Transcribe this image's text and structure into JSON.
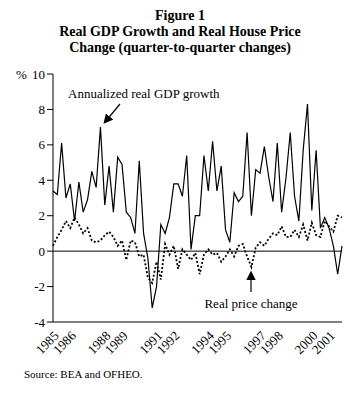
{
  "chart_data": {
    "type": "line",
    "title": "Figure 1",
    "subtitle": "Real GDP Growth and Real House Price Change (quarter-to-quarter changes)",
    "y_label": "%",
    "source": "Source: BEA and OFHEO.",
    "categories": [
      "1985",
      null,
      null,
      null,
      "1986",
      null,
      null,
      null,
      null,
      null,
      null,
      null,
      "1988",
      null,
      null,
      null,
      "1989",
      null,
      null,
      null,
      null,
      null,
      null,
      null,
      "1991",
      null,
      null,
      null,
      "1992",
      null,
      null,
      null,
      null,
      null,
      null,
      null,
      "1994",
      null,
      null,
      null,
      "1995",
      null,
      null,
      null,
      null,
      null,
      null,
      null,
      "1997",
      null,
      null,
      null,
      "1998",
      null,
      null,
      null,
      null,
      null,
      null,
      null,
      "2000",
      null,
      null,
      null,
      "2001",
      null,
      null,
      null
    ],
    "series": [
      {
        "name": "Annualized real GDP growth",
        "color": "#000000",
        "line_style": "solid",
        "values": [
          3.4,
          3.2,
          6.1,
          3.0,
          3.8,
          1.7,
          3.9,
          2.2,
          2.9,
          4.5,
          3.6,
          7.0,
          2.6,
          4.8,
          2.2,
          5.3,
          4.9,
          2.2,
          1.9,
          1.0,
          5.1,
          1.0,
          -0.4,
          -3.2,
          -2.0,
          1.5,
          1.0,
          1.9,
          3.8,
          3.8,
          3.1,
          5.4,
          0.1,
          2.0,
          2.0,
          5.4,
          3.4,
          6.2,
          3.4,
          4.8,
          1.2,
          0.5,
          3.3,
          2.8,
          3.1,
          6.7,
          2.0,
          4.6,
          4.4,
          5.9,
          4.2,
          2.8,
          6.1,
          2.2,
          4.1,
          6.7,
          3.1,
          1.7,
          5.7,
          8.3,
          2.3,
          5.7,
          1.3,
          1.9,
          1.3,
          0.3,
          -1.3,
          0.3
        ]
      },
      {
        "name": "Real price change",
        "color": "#000000",
        "line_style": "dotted",
        "values": [
          0.3,
          0.8,
          1.2,
          1.7,
          1.3,
          1.9,
          1.5,
          1.0,
          1.3,
          0.6,
          0.5,
          0.6,
          0.9,
          1.1,
          0.8,
          0.3,
          0.6,
          -0.5,
          0.6,
          0.5,
          -0.3,
          -0.2,
          -1.5,
          -1.8,
          -0.6,
          -1.6,
          0.4,
          -0.2,
          0.3,
          -1.0,
          0.1,
          -0.2,
          -0.5,
          -0.1,
          -1.3,
          -0.2,
          0.1,
          -0.2,
          -0.1,
          -0.6,
          -0.3,
          0.1,
          -0.3,
          0.3,
          0.4,
          -0.3,
          -0.9,
          0.2,
          0.5,
          0.3,
          0.7,
          1.0,
          0.9,
          1.4,
          0.8,
          0.8,
          1.2,
          0.8,
          1.5,
          0.6,
          1.6,
          0.9,
          0.8,
          1.7,
          1.4,
          1.1,
          2.0,
          1.9
        ]
      }
    ],
    "ylim": [
      -4,
      10
    ],
    "yticks": [
      -4,
      -2,
      0,
      2,
      4,
      6,
      8,
      10
    ],
    "baseline": 0,
    "grid": false
  }
}
